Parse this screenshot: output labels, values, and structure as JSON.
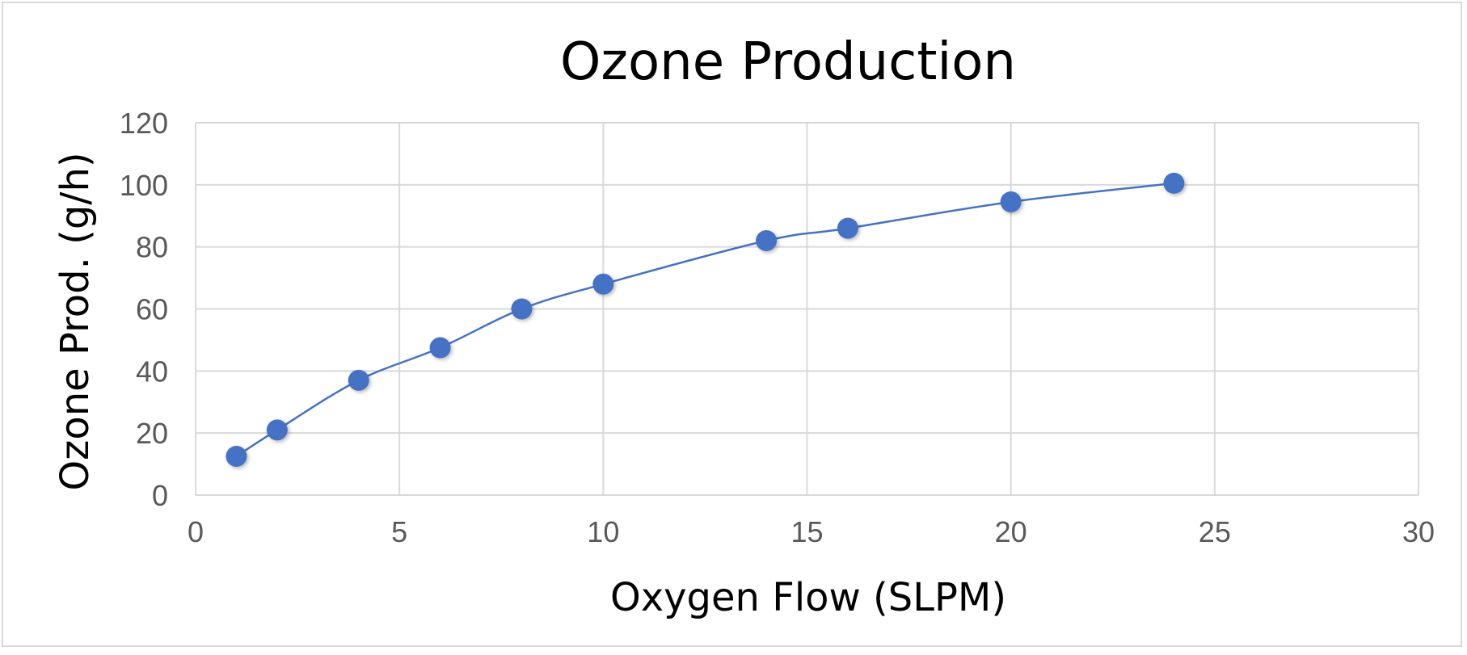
{
  "chart_data": {
    "type": "scatter",
    "title": "Ozone Production",
    "xlabel": "Oxygen Flow (SLPM)",
    "ylabel": "Ozone Prod. (g/h)",
    "xlim": [
      0,
      30
    ],
    "ylim": [
      0,
      120
    ],
    "x_ticks": [
      0,
      5,
      10,
      15,
      20,
      25,
      30
    ],
    "y_ticks": [
      0,
      20,
      40,
      60,
      80,
      100,
      120
    ],
    "grid": true,
    "legend": "none",
    "series": [
      {
        "x": [
          1,
          2,
          4,
          6,
          8,
          10,
          14,
          16,
          20,
          24
        ],
        "y": [
          12.5,
          21,
          37,
          47.5,
          60,
          68,
          82,
          86,
          94.5,
          100.5
        ],
        "color": "#4472c4",
        "style": "smooth line with markers"
      }
    ]
  }
}
